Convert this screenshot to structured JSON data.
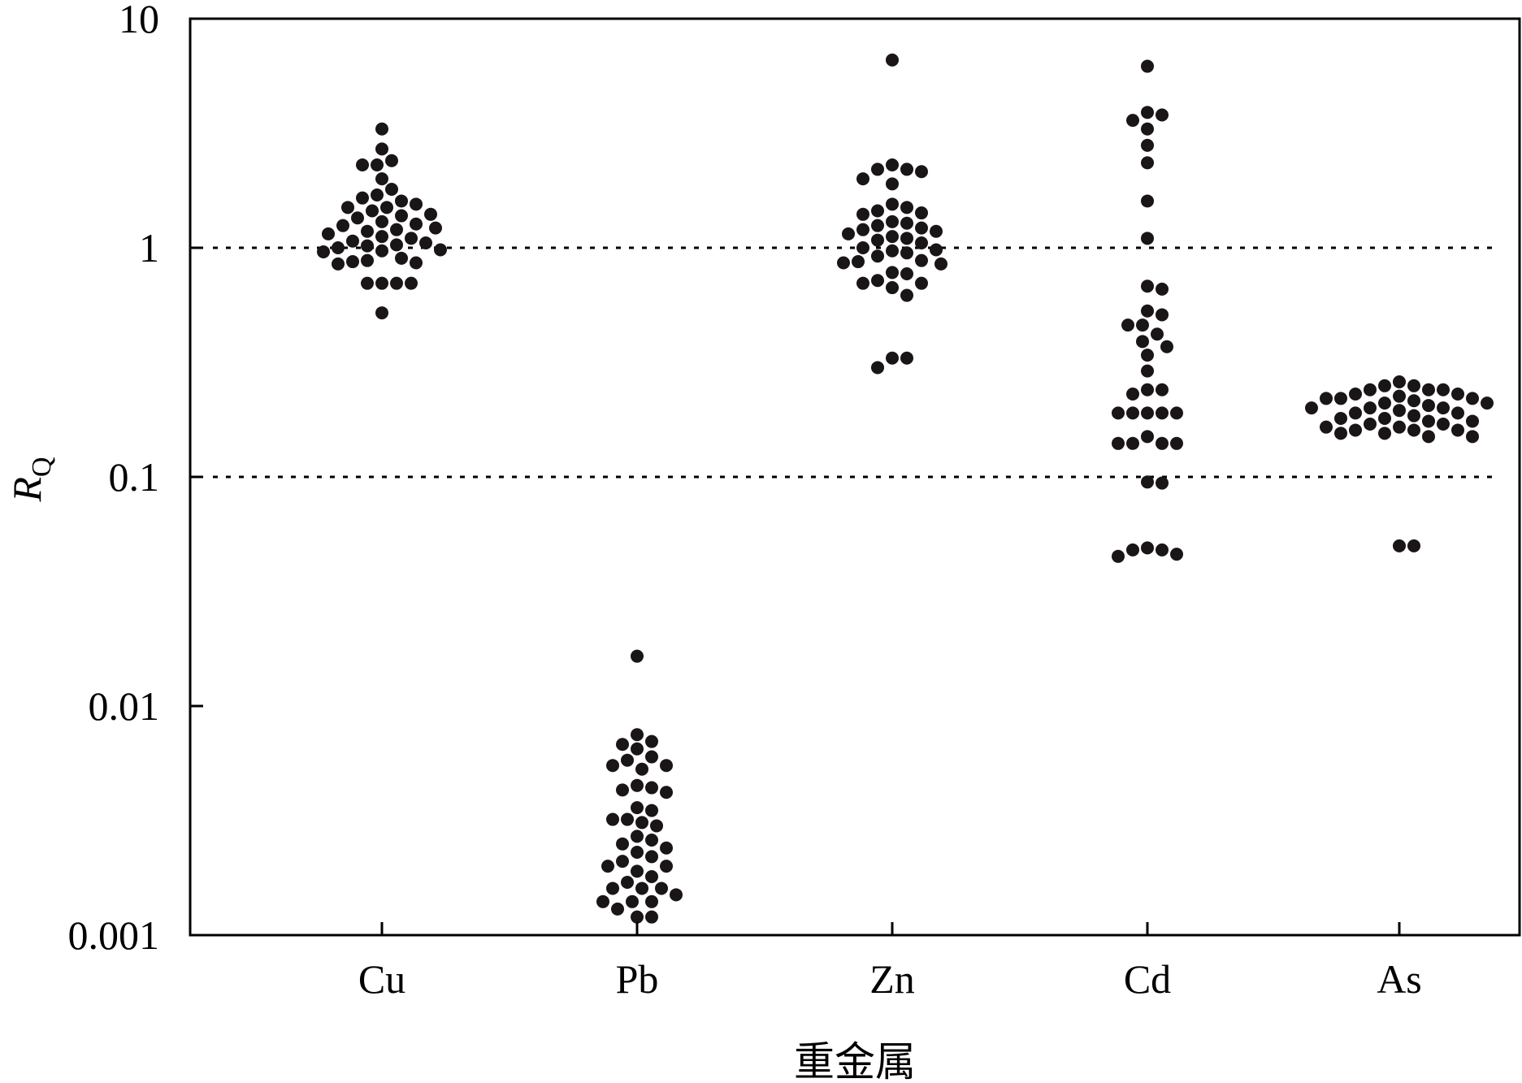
{
  "chart_data": {
    "type": "scatter",
    "subtype": "beeswarm",
    "yscale": "log",
    "ylim": [
      0.001,
      10
    ],
    "xlabel": "重金属",
    "ylabel_main": "R",
    "ylabel_sub": "Q",
    "yticks": [
      {
        "value": 10,
        "label": "10"
      },
      {
        "value": 1,
        "label": "1"
      },
      {
        "value": 0.1,
        "label": "0.1"
      },
      {
        "value": 0.01,
        "label": "0.01"
      },
      {
        "value": 0.001,
        "label": "0.001"
      }
    ],
    "reference_lines": [
      1,
      0.1
    ],
    "categories": [
      "Cu",
      "Pb",
      "Zn",
      "Cd",
      "As"
    ],
    "point_color": "#1a1516",
    "series": [
      {
        "category": "Cu",
        "values": [
          3.3,
          2.7,
          2.4,
          2.3,
          2.3,
          2.0,
          1.8,
          1.7,
          1.65,
          1.6,
          1.55,
          1.5,
          1.5,
          1.45,
          1.4,
          1.38,
          1.35,
          1.3,
          1.27,
          1.25,
          1.22,
          1.2,
          1.18,
          1.15,
          1.12,
          1.1,
          1.07,
          1.05,
          1.03,
          1.02,
          1.0,
          0.98,
          0.97,
          0.96,
          0.9,
          0.88,
          0.87,
          0.86,
          0.85,
          0.7,
          0.7,
          0.7,
          0.7,
          0.52
        ]
      },
      {
        "category": "Pb",
        "values": [
          0.0165,
          0.0075,
          0.007,
          0.0068,
          0.0065,
          0.006,
          0.0058,
          0.0055,
          0.0055,
          0.0053,
          0.0045,
          0.0044,
          0.0043,
          0.0042,
          0.0036,
          0.0035,
          0.0032,
          0.0032,
          0.0031,
          0.003,
          0.0027,
          0.0026,
          0.0025,
          0.0024,
          0.0023,
          0.0022,
          0.0021,
          0.002,
          0.002,
          0.0019,
          0.0018,
          0.0017,
          0.0016,
          0.0016,
          0.0016,
          0.0015,
          0.0014,
          0.0014,
          0.0014,
          0.0013,
          0.0012,
          0.0012
        ]
      },
      {
        "category": "Zn",
        "values": [
          6.6,
          2.3,
          2.2,
          2.2,
          2.15,
          2.0,
          1.9,
          1.55,
          1.5,
          1.45,
          1.42,
          1.4,
          1.3,
          1.28,
          1.25,
          1.22,
          1.2,
          1.18,
          1.15,
          1.12,
          1.1,
          1.08,
          1.05,
          1.0,
          0.98,
          0.97,
          0.95,
          0.92,
          0.88,
          0.87,
          0.86,
          0.85,
          0.78,
          0.77,
          0.72,
          0.7,
          0.7,
          0.67,
          0.62,
          0.33,
          0.33,
          0.3
        ]
      },
      {
        "category": "Cd",
        "values": [
          6.2,
          3.9,
          3.8,
          3.6,
          3.3,
          2.8,
          2.35,
          1.6,
          1.1,
          0.68,
          0.66,
          0.53,
          0.51,
          0.46,
          0.46,
          0.42,
          0.39,
          0.37,
          0.34,
          0.29,
          0.24,
          0.24,
          0.23,
          0.19,
          0.19,
          0.19,
          0.19,
          0.19,
          0.15,
          0.14,
          0.14,
          0.14,
          0.14,
          0.095,
          0.094,
          0.049,
          0.048,
          0.048,
          0.046,
          0.045
        ]
      },
      {
        "category": "As",
        "values": [
          0.26,
          0.25,
          0.25,
          0.24,
          0.24,
          0.24,
          0.23,
          0.23,
          0.225,
          0.22,
          0.22,
          0.22,
          0.215,
          0.21,
          0.21,
          0.205,
          0.2,
          0.2,
          0.2,
          0.195,
          0.19,
          0.19,
          0.185,
          0.18,
          0.18,
          0.175,
          0.175,
          0.17,
          0.17,
          0.165,
          0.165,
          0.16,
          0.16,
          0.16,
          0.155,
          0.155,
          0.15,
          0.15,
          0.05,
          0.05
        ]
      }
    ]
  }
}
